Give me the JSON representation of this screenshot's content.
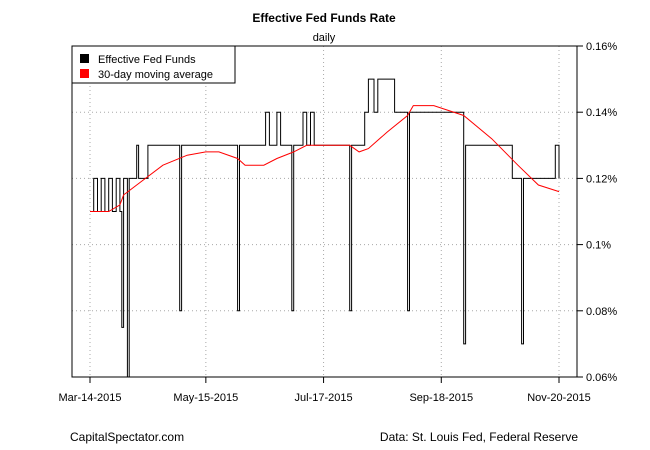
{
  "chart_data": {
    "type": "line",
    "title": "Effective Fed Funds Rate",
    "subtitle": "daily",
    "x_ticks": [
      "Mar-14-2015",
      "May-15-2015",
      "Jul-17-2015",
      "Sep-18-2015",
      "Nov-20-2015"
    ],
    "x_range": [
      "2015-03-14",
      "2015-11-20"
    ],
    "y_ticks": [
      "0.06%",
      "0.08%",
      "0.1%",
      "0.12%",
      "0.14%",
      "0.16%"
    ],
    "ylim": [
      0.06,
      0.16
    ],
    "y_axis_side": "right",
    "grid": true,
    "legend_position": "top-left",
    "series": [
      {
        "name": "Effective Fed Funds",
        "color": "#000000",
        "points": [
          [
            "2015-03-14",
            0.11
          ],
          [
            "2015-03-16",
            0.12
          ],
          [
            "2015-03-18",
            0.11
          ],
          [
            "2015-03-20",
            0.12
          ],
          [
            "2015-03-22",
            0.11
          ],
          [
            "2015-03-24",
            0.12
          ],
          [
            "2015-03-26",
            0.11
          ],
          [
            "2015-03-28",
            0.12
          ],
          [
            "2015-03-30",
            0.11
          ],
          [
            "2015-03-31",
            0.075
          ],
          [
            "2015-04-01",
            0.12
          ],
          [
            "2015-04-03",
            0.06
          ],
          [
            "2015-04-04",
            0.12
          ],
          [
            "2015-04-08",
            0.13
          ],
          [
            "2015-04-09",
            0.12
          ],
          [
            "2015-04-14",
            0.13
          ],
          [
            "2015-04-30",
            0.13
          ],
          [
            "2015-05-01",
            0.08
          ],
          [
            "2015-05-02",
            0.13
          ],
          [
            "2015-05-31",
            0.13
          ],
          [
            "2015-06-01",
            0.08
          ],
          [
            "2015-06-02",
            0.13
          ],
          [
            "2015-06-14",
            0.13
          ],
          [
            "2015-06-16",
            0.14
          ],
          [
            "2015-06-18",
            0.13
          ],
          [
            "2015-06-22",
            0.14
          ],
          [
            "2015-06-24",
            0.13
          ],
          [
            "2015-06-28",
            0.13
          ],
          [
            "2015-06-30",
            0.08
          ],
          [
            "2015-07-01",
            0.13
          ],
          [
            "2015-07-05",
            0.13
          ],
          [
            "2015-07-06",
            0.14
          ],
          [
            "2015-07-08",
            0.13
          ],
          [
            "2015-07-10",
            0.14
          ],
          [
            "2015-07-12",
            0.13
          ],
          [
            "2015-07-29",
            0.13
          ],
          [
            "2015-07-31",
            0.08
          ],
          [
            "2015-08-01",
            0.13
          ],
          [
            "2015-08-08",
            0.14
          ],
          [
            "2015-08-10",
            0.15
          ],
          [
            "2015-08-13",
            0.14
          ],
          [
            "2015-08-15",
            0.15
          ],
          [
            "2015-08-22",
            0.15
          ],
          [
            "2015-08-24",
            0.14
          ],
          [
            "2015-08-30",
            0.14
          ],
          [
            "2015-08-31",
            0.08
          ],
          [
            "2015-09-01",
            0.14
          ],
          [
            "2015-09-29",
            0.14
          ],
          [
            "2015-09-30",
            0.07
          ],
          [
            "2015-10-01",
            0.13
          ],
          [
            "2015-10-22",
            0.13
          ],
          [
            "2015-10-26",
            0.12
          ],
          [
            "2015-10-30",
            0.12
          ],
          [
            "2015-10-31",
            0.07
          ],
          [
            "2015-11-01",
            0.12
          ],
          [
            "2015-11-16",
            0.12
          ],
          [
            "2015-11-18",
            0.13
          ],
          [
            "2015-11-20",
            0.12
          ]
        ]
      },
      {
        "name": "30-day moving average",
        "color": "#ff0000",
        "points": [
          [
            "2015-03-14",
            0.11
          ],
          [
            "2015-03-24",
            0.11
          ],
          [
            "2015-03-30",
            0.112
          ],
          [
            "2015-04-01",
            0.115
          ],
          [
            "2015-04-08",
            0.118
          ],
          [
            "2015-04-22",
            0.124
          ],
          [
            "2015-05-05",
            0.127
          ],
          [
            "2015-05-15",
            0.128
          ],
          [
            "2015-05-22",
            0.128
          ],
          [
            "2015-06-01",
            0.126
          ],
          [
            "2015-06-05",
            0.124
          ],
          [
            "2015-06-10",
            0.124
          ],
          [
            "2015-06-15",
            0.124
          ],
          [
            "2015-06-22",
            0.126
          ],
          [
            "2015-07-01",
            0.128
          ],
          [
            "2015-07-08",
            0.13
          ],
          [
            "2015-07-20",
            0.13
          ],
          [
            "2015-07-31",
            0.13
          ],
          [
            "2015-08-05",
            0.128
          ],
          [
            "2015-08-10",
            0.129
          ],
          [
            "2015-08-20",
            0.134
          ],
          [
            "2015-08-31",
            0.139
          ],
          [
            "2015-09-03",
            0.142
          ],
          [
            "2015-09-14",
            0.142
          ],
          [
            "2015-09-30",
            0.139
          ],
          [
            "2015-10-15",
            0.132
          ],
          [
            "2015-10-29",
            0.124
          ],
          [
            "2015-11-09",
            0.118
          ],
          [
            "2015-11-20",
            0.116
          ]
        ]
      }
    ]
  },
  "footer": {
    "left": "CapitalSpectator.com",
    "right": "Data: St. Louis Fed, Federal Reserve"
  }
}
